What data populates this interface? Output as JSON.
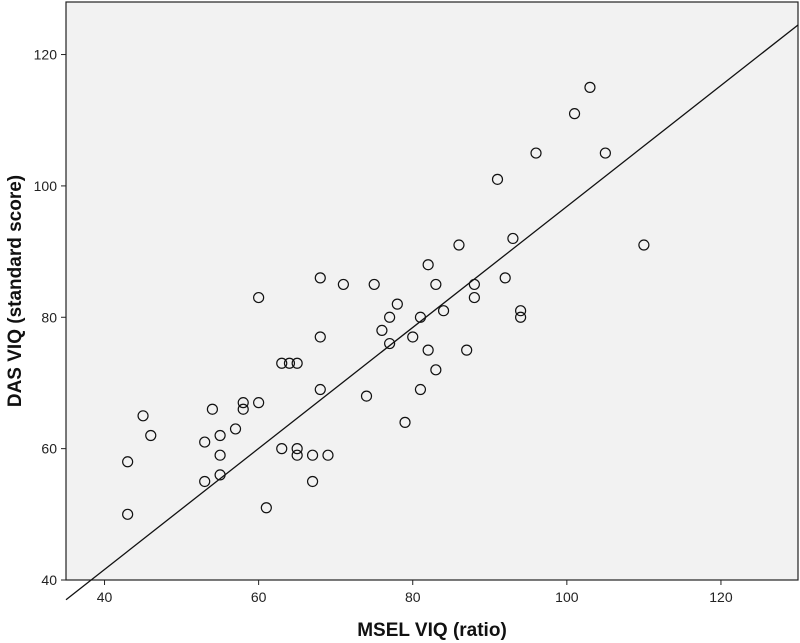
{
  "chart_data": {
    "type": "scatter",
    "title": "",
    "xlabel": "MSEL VIQ (ratio)",
    "ylabel": "DAS VIQ (standard score)",
    "xlim": [
      35,
      130
    ],
    "ylim": [
      40,
      128
    ],
    "xticks": [
      "40",
      "60",
      "80",
      "100",
      "120"
    ],
    "yticks": [
      "40",
      "60",
      "80",
      "100",
      "120"
    ],
    "grid": false,
    "legend": "none",
    "colors": {
      "plot_background": "#f2f2f2",
      "marker_stroke": "#111111",
      "fit_line": "#111111",
      "frame": "#222222"
    },
    "fit_line": {
      "x": [
        35,
        130
      ],
      "y": [
        37.0,
        124.5
      ]
    },
    "points": [
      {
        "x": 43,
        "y": 58
      },
      {
        "x": 43,
        "y": 50
      },
      {
        "x": 45,
        "y": 65
      },
      {
        "x": 46,
        "y": 62
      },
      {
        "x": 53,
        "y": 61
      },
      {
        "x": 53,
        "y": 55
      },
      {
        "x": 54,
        "y": 66
      },
      {
        "x": 55,
        "y": 62
      },
      {
        "x": 55,
        "y": 59
      },
      {
        "x": 55,
        "y": 56
      },
      {
        "x": 57,
        "y": 63
      },
      {
        "x": 58,
        "y": 67
      },
      {
        "x": 58,
        "y": 66
      },
      {
        "x": 60,
        "y": 83
      },
      {
        "x": 60,
        "y": 67
      },
      {
        "x": 61,
        "y": 51
      },
      {
        "x": 63,
        "y": 73
      },
      {
        "x": 63,
        "y": 60
      },
      {
        "x": 64,
        "y": 73
      },
      {
        "x": 65,
        "y": 73
      },
      {
        "x": 65,
        "y": 60
      },
      {
        "x": 65,
        "y": 59
      },
      {
        "x": 67,
        "y": 59
      },
      {
        "x": 67,
        "y": 55
      },
      {
        "x": 68,
        "y": 86
      },
      {
        "x": 68,
        "y": 77
      },
      {
        "x": 68,
        "y": 69
      },
      {
        "x": 69,
        "y": 59
      },
      {
        "x": 71,
        "y": 85
      },
      {
        "x": 74,
        "y": 68
      },
      {
        "x": 75,
        "y": 85
      },
      {
        "x": 76,
        "y": 78
      },
      {
        "x": 77,
        "y": 80
      },
      {
        "x": 77,
        "y": 76
      },
      {
        "x": 78,
        "y": 82
      },
      {
        "x": 79,
        "y": 64
      },
      {
        "x": 80,
        "y": 77
      },
      {
        "x": 81,
        "y": 80
      },
      {
        "x": 81,
        "y": 69
      },
      {
        "x": 82,
        "y": 88
      },
      {
        "x": 82,
        "y": 75
      },
      {
        "x": 83,
        "y": 85
      },
      {
        "x": 83,
        "y": 72
      },
      {
        "x": 84,
        "y": 81
      },
      {
        "x": 86,
        "y": 91
      },
      {
        "x": 87,
        "y": 75
      },
      {
        "x": 88,
        "y": 85
      },
      {
        "x": 88,
        "y": 83
      },
      {
        "x": 91,
        "y": 101
      },
      {
        "x": 92,
        "y": 86
      },
      {
        "x": 93,
        "y": 92
      },
      {
        "x": 94,
        "y": 81
      },
      {
        "x": 94,
        "y": 80
      },
      {
        "x": 96,
        "y": 105
      },
      {
        "x": 101,
        "y": 111
      },
      {
        "x": 103,
        "y": 115
      },
      {
        "x": 105,
        "y": 105
      },
      {
        "x": 110,
        "y": 91
      }
    ]
  }
}
